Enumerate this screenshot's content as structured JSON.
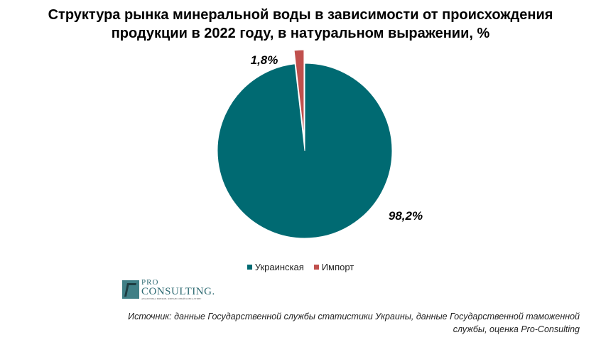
{
  "chart_data": {
    "type": "pie",
    "title_lines": [
      "Структура рынка минеральной воды в зависимости от происхождения",
      "продукции в 2022 году, в натуральном выражении, %"
    ],
    "categories": [
      "Украинская",
      "Импорт"
    ],
    "values": [
      98.2,
      1.8
    ],
    "labels": [
      "98,2%",
      "1,8%"
    ],
    "colors": [
      "#006a72",
      "#c0504d"
    ],
    "legend_position": "bottom",
    "exploded": [
      "Импорт"
    ]
  },
  "logo": {
    "line1": "PRO",
    "line2": "CONSULTING.",
    "tagline": "АНАЛИТИКА РЫНКОВ, ФИНАНСОВЫЙ КОНСАЛТИНГ"
  },
  "source_note": {
    "line1": "Источник: данные Государственной службы статистики Украины, данные Государственной таможенной",
    "line2": "службы, оценка Pro-Consulting"
  }
}
